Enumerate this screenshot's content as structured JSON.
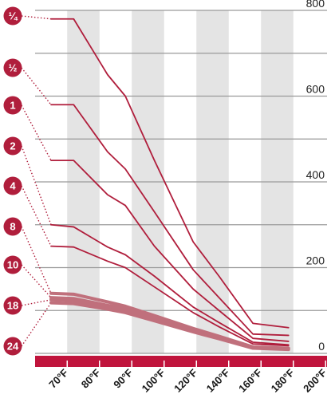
{
  "colors": {
    "band": "#e4e4e4",
    "grid": "#9a9a9a",
    "line": "#b01e3c",
    "thick_line": "#c0707c",
    "axis_bar": "#c0143c",
    "badge": "#b01e3c",
    "badge_text": "#ffffff"
  },
  "chart_data": {
    "type": "line",
    "title": "",
    "xlabel": "",
    "ylabel": "",
    "categories": [
      "70°F",
      "80°F",
      "90°F",
      "100°F",
      "120°F",
      "140°F",
      "160°F",
      "180°F",
      "200°F"
    ],
    "y_ticks": [
      "800",
      "600",
      "400",
      "200",
      "0"
    ],
    "ylim": [
      0,
      800
    ],
    "grid": true,
    "x_points": [
      0,
      0.7,
      1.75,
      2.3,
      3.2,
      4.4,
      5.2,
      6.25,
      7.35
    ],
    "series": [
      {
        "name": "¼",
        "values": [
          780,
          780,
          650,
          600,
          450,
          260,
          180,
          70,
          60
        ]
      },
      {
        "name": "½",
        "values": [
          580,
          580,
          470,
          430,
          330,
          195,
          130,
          45,
          42
        ]
      },
      {
        "name": "1",
        "values": [
          450,
          450,
          370,
          345,
          250,
          150,
          100,
          35,
          28
        ]
      },
      {
        "name": "2",
        "values": [
          300,
          295,
          248,
          230,
          180,
          108,
          72,
          26,
          20
        ]
      },
      {
        "name": "4",
        "values": [
          250,
          248,
          215,
          200,
          155,
          95,
          62,
          22,
          18
        ]
      },
      {
        "name": "8",
        "values": [
          140,
          138,
          120,
          110,
          88,
          58,
          40,
          15,
          12
        ]
      },
      {
        "name": "10",
        "values": [
          130,
          128,
          112,
          105,
          83,
          55,
          38,
          14,
          11
        ]
      },
      {
        "name": "18",
        "values": [
          125,
          123,
          108,
          100,
          80,
          52,
          36,
          13,
          10
        ]
      },
      {
        "name": "24",
        "values": [
          118,
          116,
          103,
          95,
          76,
          50,
          34,
          12,
          9
        ]
      }
    ]
  }
}
